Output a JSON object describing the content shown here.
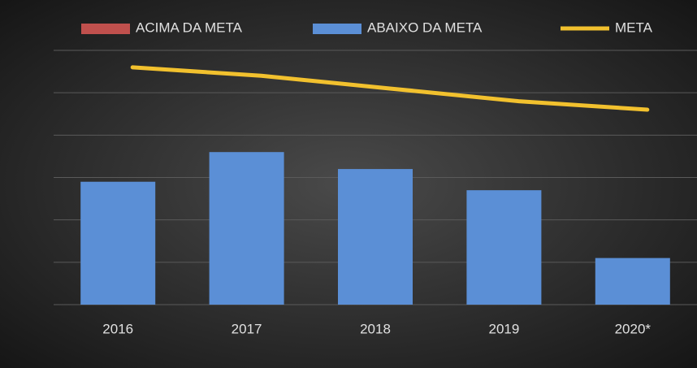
{
  "chart_data": {
    "type": "bar",
    "categories": [
      "2016",
      "2017",
      "2018",
      "2019",
      "2020*"
    ],
    "series": [
      {
        "name": "ACIMA DA META",
        "color": "#c0504d",
        "values": [
          null,
          null,
          null,
          null,
          null
        ]
      },
      {
        "name": "ABAIXO DA META",
        "color": "#5b8fd6",
        "values": [
          2.9,
          3.6,
          3.2,
          2.7,
          1.1
        ]
      },
      {
        "name": "META",
        "color": "#f2c12e",
        "type": "line",
        "values": [
          5.6,
          5.4,
          5.1,
          4.8,
          4.6
        ]
      }
    ],
    "ylim": [
      0,
      6
    ],
    "yticks": [
      0,
      1,
      2,
      3,
      4,
      5,
      6
    ],
    "grid": true,
    "legend": "top"
  }
}
